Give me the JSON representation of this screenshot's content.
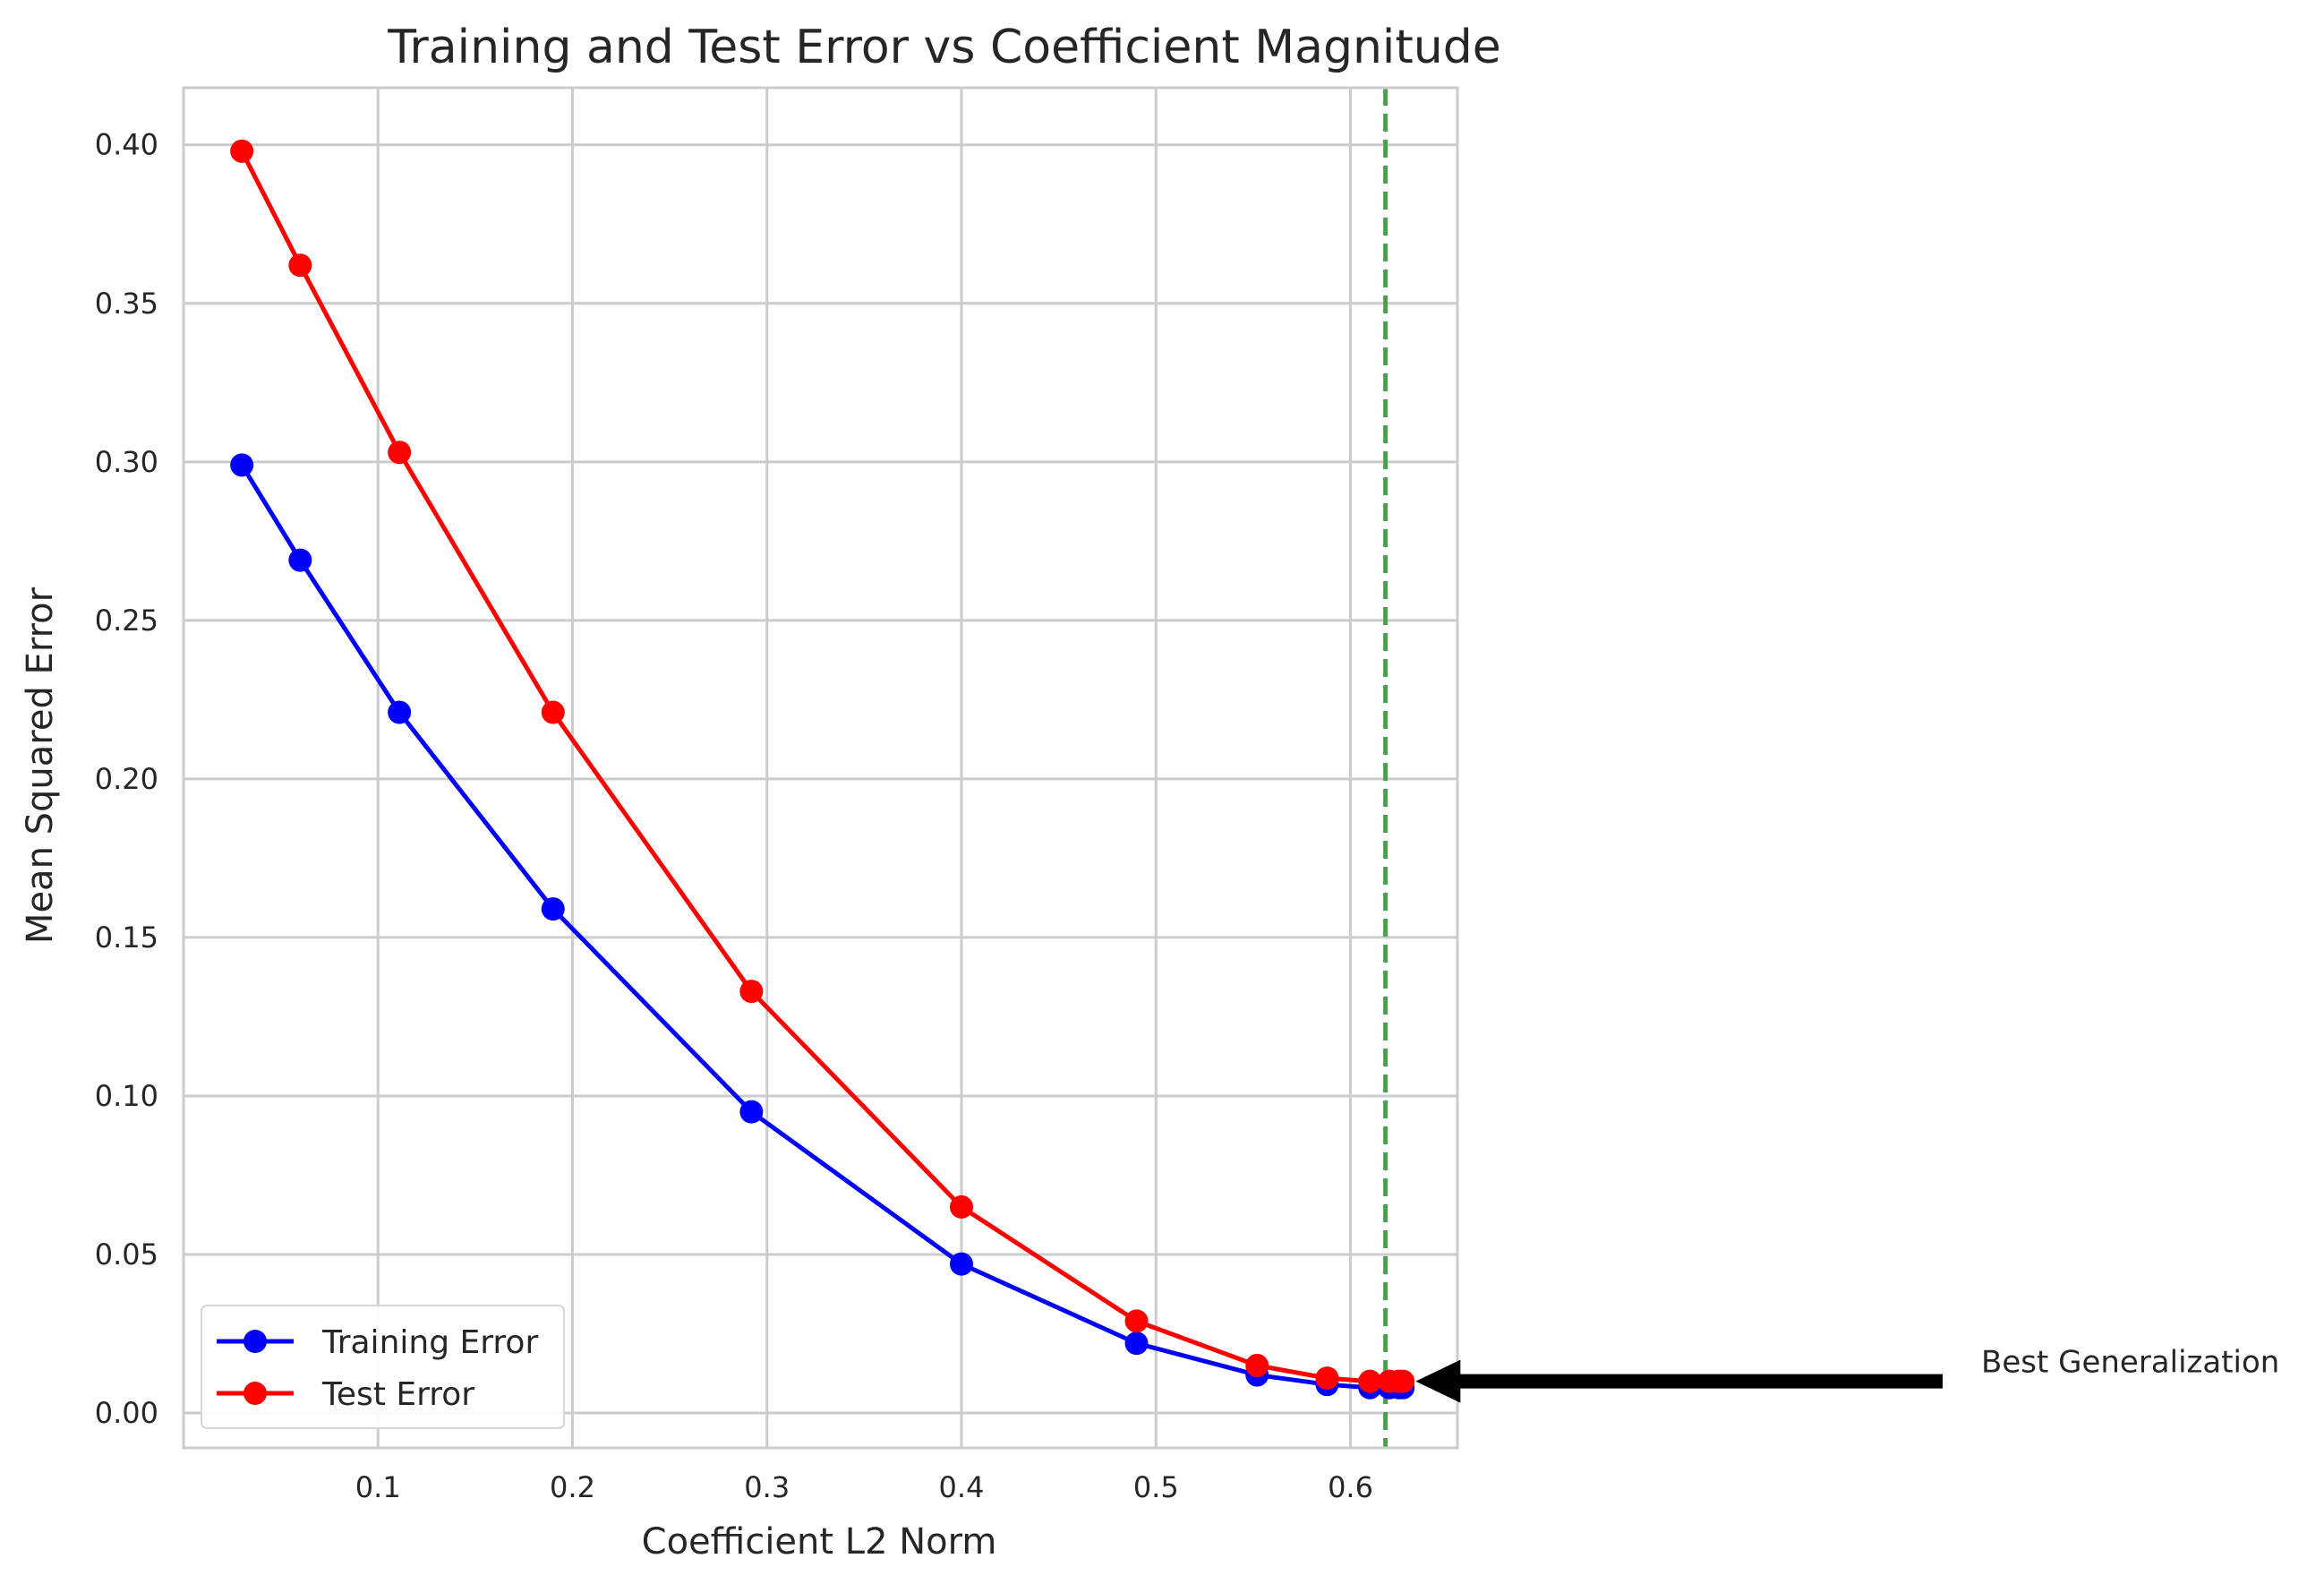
{
  "chart_data": {
    "type": "line",
    "title": "Training and Test Error vs Coefficient Magnitude",
    "xlabel": "Coefficient L2 Norm",
    "ylabel": "Mean Squared Error",
    "xlim": [
      0.0,
      0.655
    ],
    "ylim": [
      -0.011,
      0.418
    ],
    "xticks": [
      0.1,
      0.2,
      0.3,
      0.4,
      0.5,
      0.6
    ],
    "xtick_labels": [
      "0.1",
      "0.2",
      "0.3",
      "0.4",
      "0.5",
      "0.6"
    ],
    "yticks": [
      0.0,
      0.05,
      0.1,
      0.15,
      0.2,
      0.25,
      0.3,
      0.35,
      0.4
    ],
    "ytick_labels": [
      "0.00",
      "0.05",
      "0.10",
      "0.15",
      "0.20",
      "0.25",
      "0.30",
      "0.35",
      "0.40"
    ],
    "grid": true,
    "legend_position": "lower-left",
    "series": [
      {
        "name": "Training Error",
        "color": "#0000ff",
        "x": [
          0.03,
          0.06,
          0.111,
          0.19,
          0.292,
          0.4,
          0.49,
          0.552,
          0.588,
          0.61,
          0.62,
          0.625,
          0.627
        ],
        "y": [
          0.299,
          0.269,
          0.221,
          0.159,
          0.095,
          0.047,
          0.022,
          0.012,
          0.009,
          0.008,
          0.008,
          0.008,
          0.008
        ]
      },
      {
        "name": "Test Error",
        "color": "#ff0000",
        "x": [
          0.03,
          0.06,
          0.111,
          0.19,
          0.292,
          0.4,
          0.49,
          0.552,
          0.588,
          0.61,
          0.62,
          0.625,
          0.627
        ],
        "y": [
          0.398,
          0.362,
          0.303,
          0.221,
          0.133,
          0.065,
          0.029,
          0.015,
          0.011,
          0.01,
          0.01,
          0.01,
          0.01
        ]
      }
    ],
    "reference_line": {
      "orientation": "vertical",
      "x": 0.618,
      "color": "#4aa04a",
      "style": "dashed"
    },
    "annotation": {
      "text": "Best Generalization",
      "point_x": 0.628,
      "point_y": 0.01,
      "color": "#000000"
    }
  }
}
